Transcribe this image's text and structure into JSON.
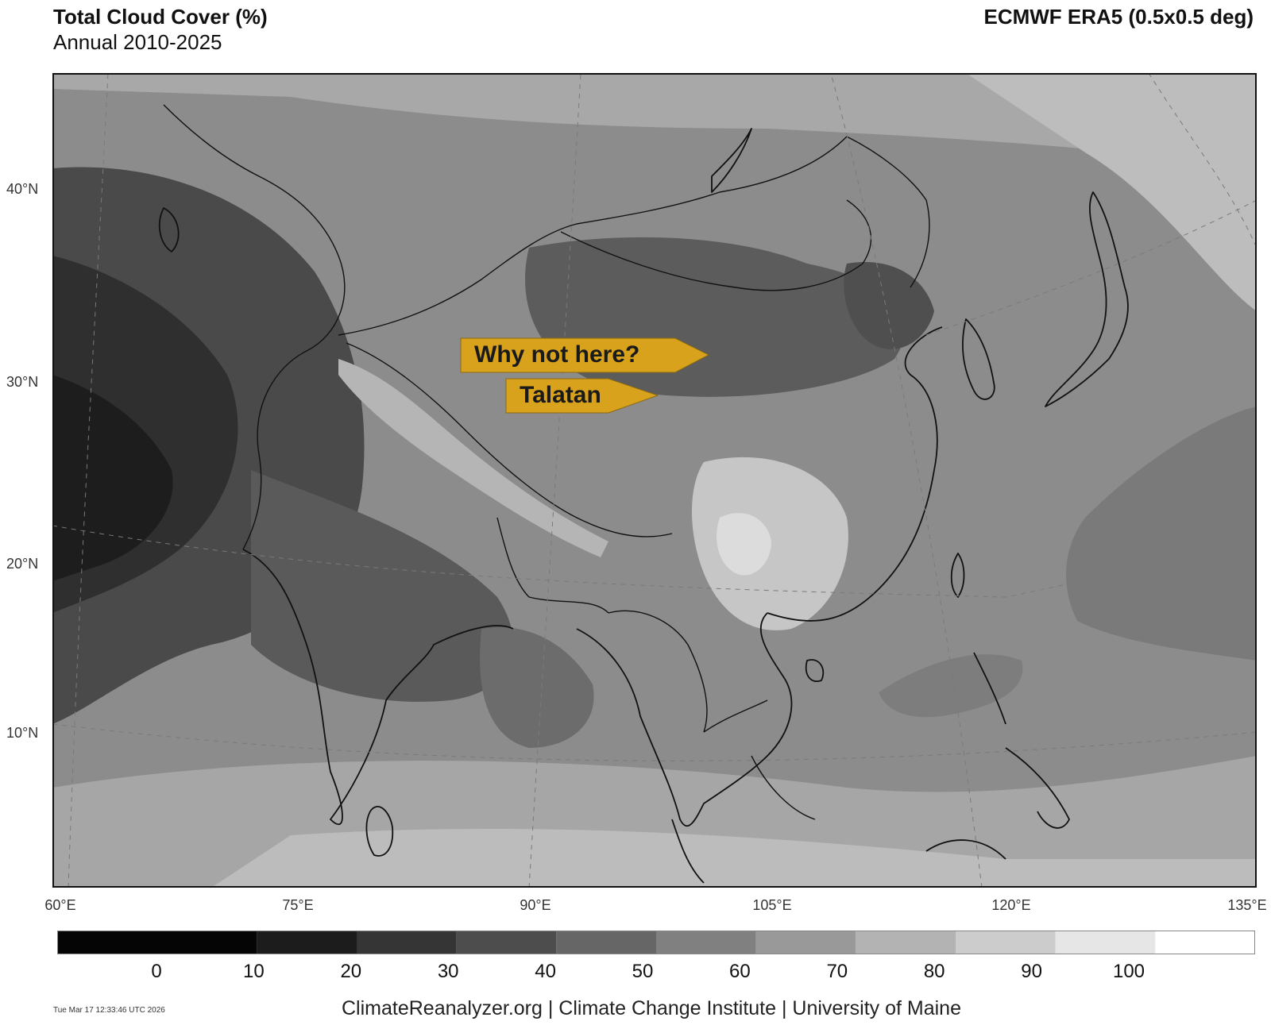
{
  "header": {
    "title": "Total Cloud Cover (%)",
    "subtitle": "Annual 2010-2025",
    "source": "ECMWF ERA5 (0.5x0.5 deg)"
  },
  "map": {
    "lat_labels": [
      "40°N",
      "30°N",
      "20°N",
      "10°N"
    ],
    "lon_labels": [
      "60°E",
      "75°E",
      "90°E",
      "105°E",
      "120°E",
      "135°E"
    ],
    "shading": "grayscale",
    "annotations": [
      {
        "text": "Why not here?",
        "color": "#d8a21c"
      },
      {
        "text": "Talatan",
        "color": "#d8a21c"
      }
    ]
  },
  "legend": {
    "ticks": [
      "0",
      "10",
      "20",
      "30",
      "40",
      "50",
      "60",
      "70",
      "80",
      "90",
      "100"
    ],
    "colors": [
      "#050505",
      "#1c1c1c",
      "#353535",
      "#4d4d4d",
      "#666666",
      "#808080",
      "#999999",
      "#b3b3b3",
      "#cccccc",
      "#e6e6e6",
      "#ffffff"
    ]
  },
  "footer": {
    "timestamp": "Tue Mar 17 12:33:46 UTC 2026",
    "credit": "ClimateReanalyzer.org | Climate Change Institute | University of Maine"
  }
}
